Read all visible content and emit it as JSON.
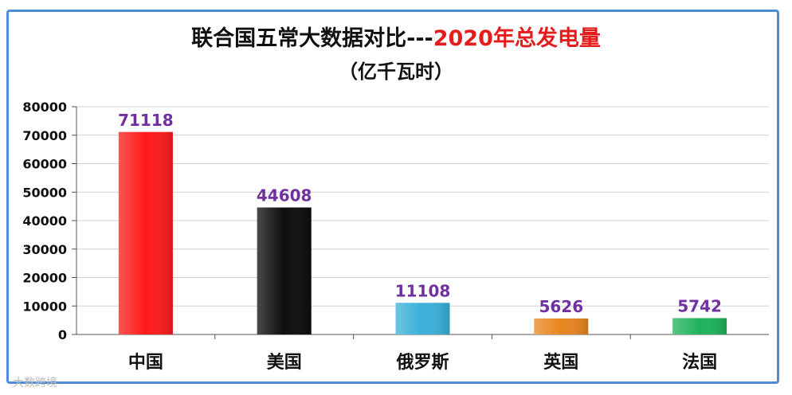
{
  "chart_data": {
    "type": "bar",
    "title_prefix": "联合国五常大数据对比---",
    "title_highlight": "2020年总发电量",
    "subtitle": "（亿千瓦时）",
    "categories": [
      "中国",
      "美国",
      "俄罗斯",
      "英国",
      "法国"
    ],
    "values": [
      71118,
      44608,
      11108,
      5626,
      5742
    ],
    "colors": [
      "#ff1a1a",
      "#0d0d0d",
      "#3ab0d9",
      "#e8861f",
      "#1fb35a"
    ],
    "yticks": [
      0,
      10000,
      20000,
      30000,
      40000,
      50000,
      60000,
      70000,
      80000
    ],
    "ylim": [
      0,
      80000
    ],
    "grid": true,
    "data_label_color": "#7030a0"
  },
  "watermark": "大数跨境"
}
